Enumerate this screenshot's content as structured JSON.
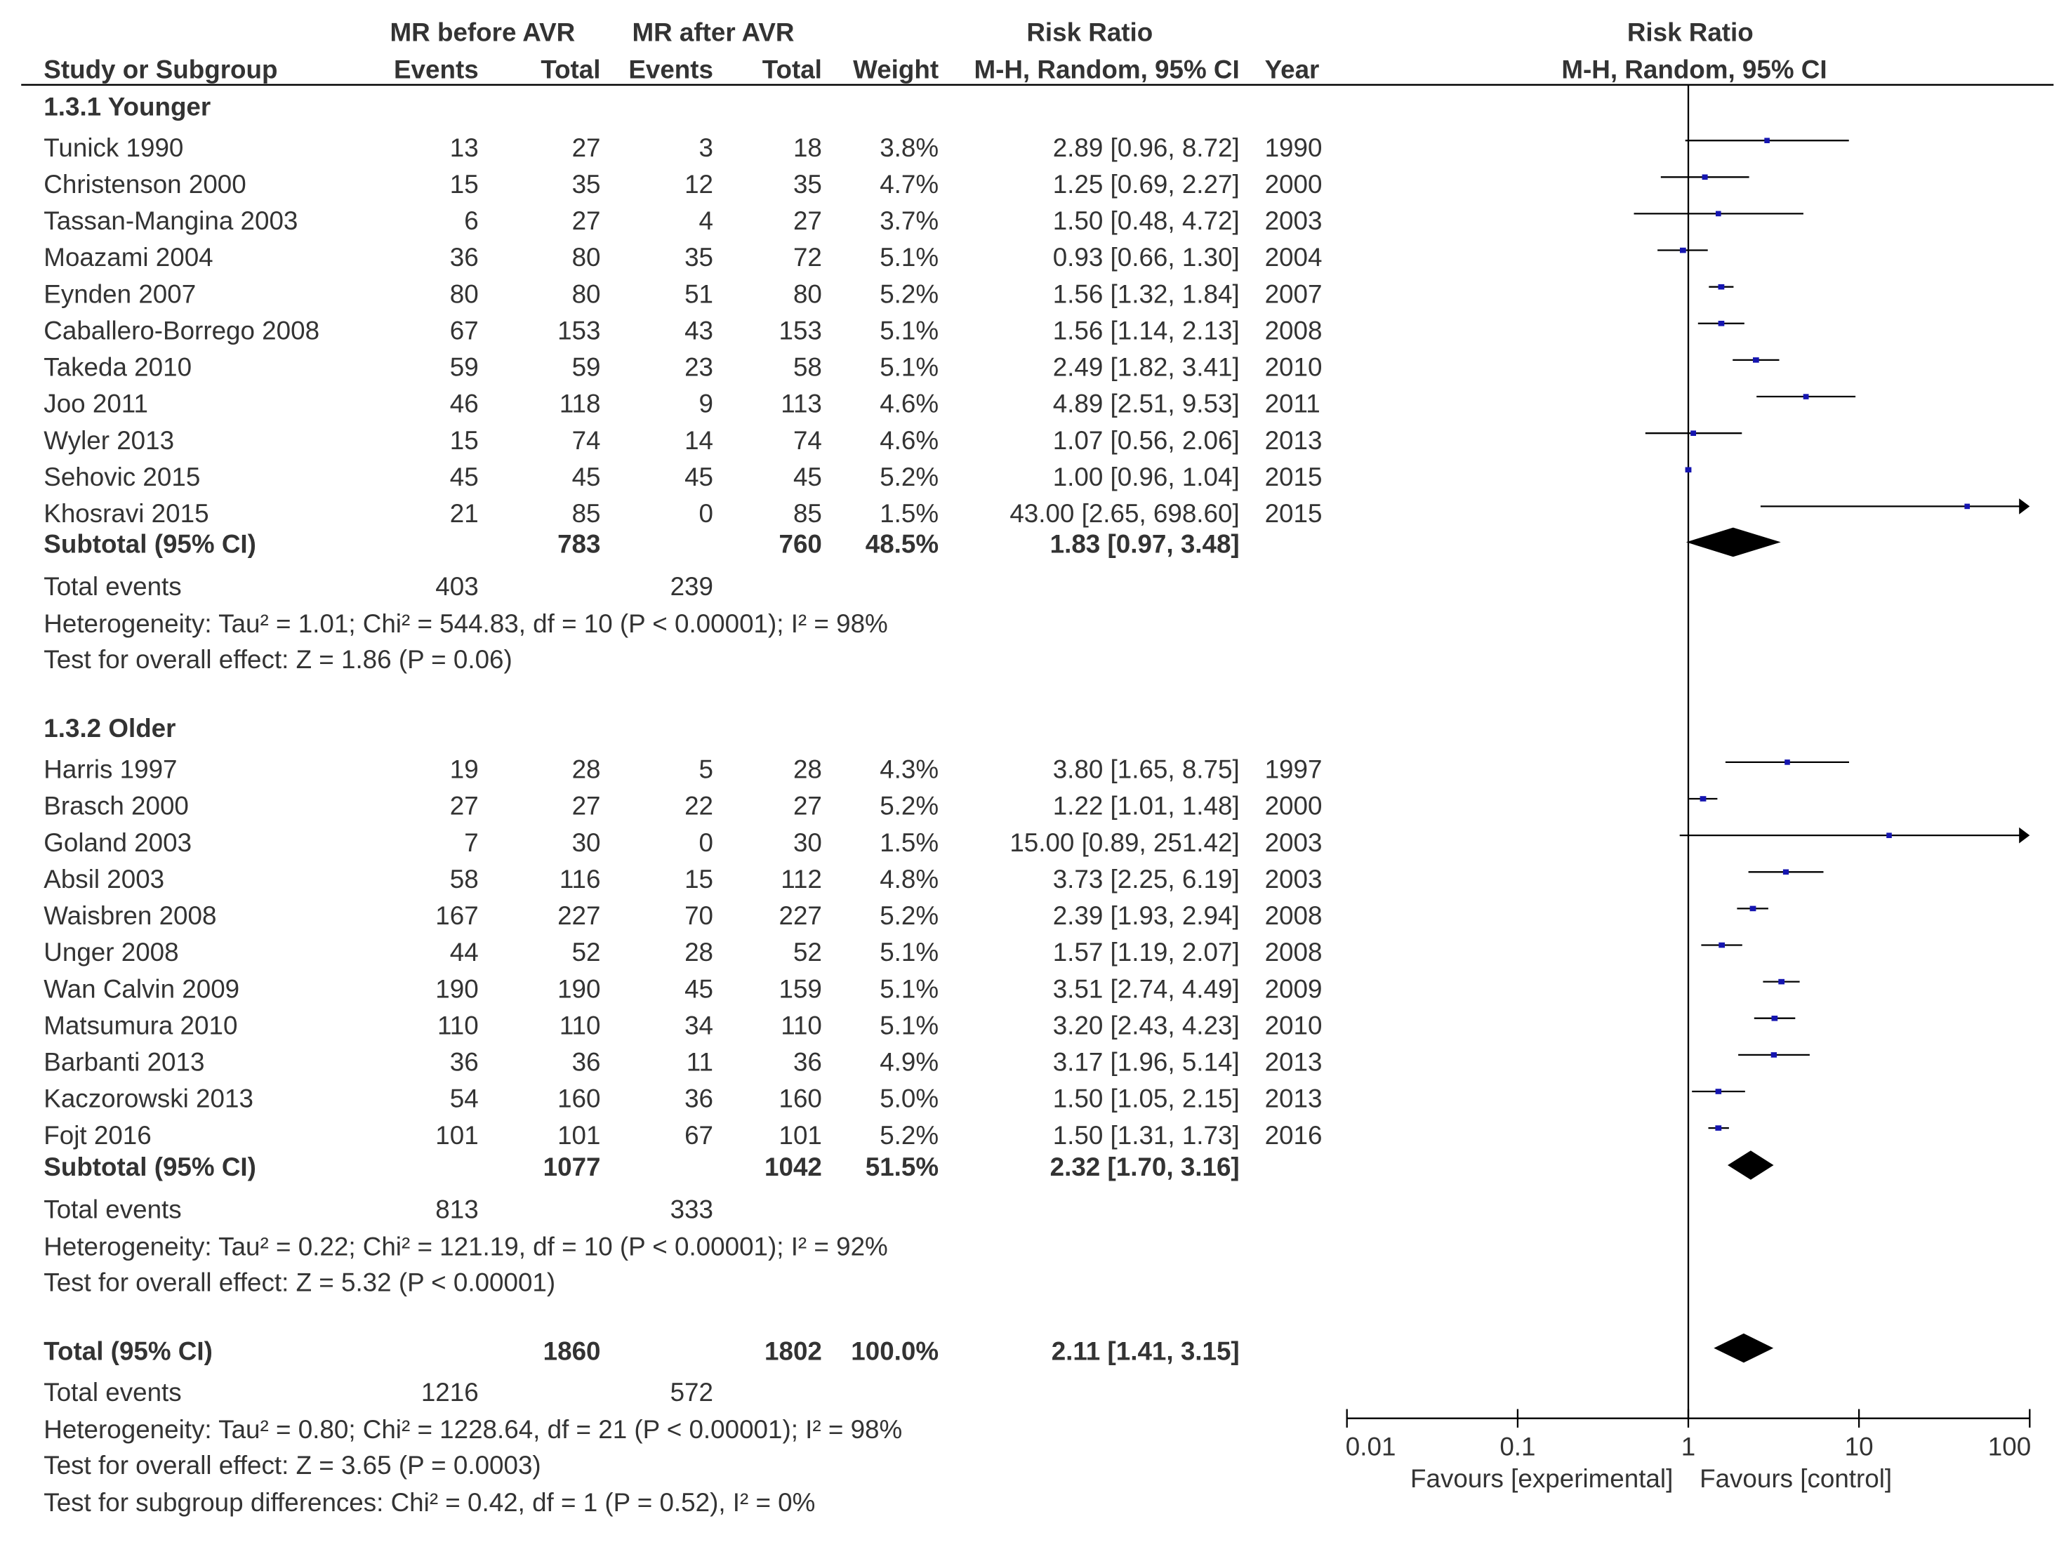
{
  "headers": {
    "group_exp": "MR before AVR",
    "group_ctl": "MR after AVR",
    "risk_ratio": "Risk Ratio",
    "plot_title": "Risk Ratio",
    "study": "Study or Subgroup",
    "events": "Events",
    "total": "Total",
    "weight": "Weight",
    "method": "M-H, Random, 95% CI",
    "year": "Year",
    "plot_method": "M-H, Random, 95% CI"
  },
  "footer": {
    "left_label": "Favours [experimental]",
    "right_label": "Favours [control]",
    "subgroup_test": "Test for subgroup differences: Chi² = 0.42, df = 1 (P = 0.52), I² = 0%"
  },
  "overall": {
    "label": "Total (95% CI)",
    "total_exp": "1860",
    "total_ctl": "1802",
    "weight": "100.0%",
    "ci_text": "2.11 [1.41, 3.15]",
    "total_events_label": "Total events",
    "events_exp": "1216",
    "events_ctl": "572",
    "heterogeneity": "Heterogeneity: Tau² = 0.80; Chi² = 1228.64, df = 21 (P < 0.00001); I² = 98%",
    "overall_effect": "Test for overall effect: Z = 3.65 (P = 0.0003)"
  },
  "chart_data": {
    "type": "forest",
    "title": "Risk Ratio",
    "method": "M-H, Random, 95% CI",
    "x_scale": "log",
    "xlim": [
      0.01,
      100
    ],
    "x_ticks": [
      "0.01",
      "0.1",
      "1",
      "10",
      "100"
    ],
    "x_tick_values": [
      0.01,
      0.1,
      1,
      10,
      100
    ],
    "reference_line": 1,
    "subgroups": [
      {
        "label": "1.3.1 Younger",
        "studies": [
          {
            "name": "Tunick 1990",
            "events_exp": "13",
            "total_exp": "27",
            "events_ctl": "3",
            "total_ctl": "18",
            "weight": "3.8%",
            "ci_text": "2.89 [0.96, 8.72]",
            "year": "1990",
            "rr": 2.89,
            "lo": 0.96,
            "hi": 8.72
          },
          {
            "name": "Christenson 2000",
            "events_exp": "15",
            "total_exp": "35",
            "events_ctl": "12",
            "total_ctl": "35",
            "weight": "4.7%",
            "ci_text": "1.25 [0.69, 2.27]",
            "year": "2000",
            "rr": 1.25,
            "lo": 0.69,
            "hi": 2.27
          },
          {
            "name": "Tassan-Mangina 2003",
            "events_exp": "6",
            "total_exp": "27",
            "events_ctl": "4",
            "total_ctl": "27",
            "weight": "3.7%",
            "ci_text": "1.50 [0.48, 4.72]",
            "year": "2003",
            "rr": 1.5,
            "lo": 0.48,
            "hi": 4.72
          },
          {
            "name": "Moazami 2004",
            "events_exp": "36",
            "total_exp": "80",
            "events_ctl": "35",
            "total_ctl": "72",
            "weight": "5.1%",
            "ci_text": "0.93 [0.66, 1.30]",
            "year": "2004",
            "rr": 0.93,
            "lo": 0.66,
            "hi": 1.3
          },
          {
            "name": "Eynden 2007",
            "events_exp": "80",
            "total_exp": "80",
            "events_ctl": "51",
            "total_ctl": "80",
            "weight": "5.2%",
            "ci_text": "1.56 [1.32, 1.84]",
            "year": "2007",
            "rr": 1.56,
            "lo": 1.32,
            "hi": 1.84
          },
          {
            "name": "Caballero-Borrego 2008",
            "events_exp": "67",
            "total_exp": "153",
            "events_ctl": "43",
            "total_ctl": "153",
            "weight": "5.1%",
            "ci_text": "1.56 [1.14, 2.13]",
            "year": "2008",
            "rr": 1.56,
            "lo": 1.14,
            "hi": 2.13
          },
          {
            "name": "Takeda 2010",
            "events_exp": "59",
            "total_exp": "59",
            "events_ctl": "23",
            "total_ctl": "58",
            "weight": "5.1%",
            "ci_text": "2.49 [1.82, 3.41]",
            "year": "2010",
            "rr": 2.49,
            "lo": 1.82,
            "hi": 3.41
          },
          {
            "name": "Joo 2011",
            "events_exp": "46",
            "total_exp": "118",
            "events_ctl": "9",
            "total_ctl": "113",
            "weight": "4.6%",
            "ci_text": "4.89 [2.51, 9.53]",
            "year": "2011",
            "rr": 4.89,
            "lo": 2.51,
            "hi": 9.53
          },
          {
            "name": "Wyler 2013",
            "events_exp": "15",
            "total_exp": "74",
            "events_ctl": "14",
            "total_ctl": "74",
            "weight": "4.6%",
            "ci_text": "1.07 [0.56, 2.06]",
            "year": "2013",
            "rr": 1.07,
            "lo": 0.56,
            "hi": 2.06
          },
          {
            "name": "Sehovic 2015",
            "events_exp": "45",
            "total_exp": "45",
            "events_ctl": "45",
            "total_ctl": "45",
            "weight": "5.2%",
            "ci_text": "1.00 [0.96, 1.04]",
            "year": "2015",
            "rr": 1.0,
            "lo": 0.96,
            "hi": 1.04
          },
          {
            "name": "Khosravi 2015",
            "events_exp": "21",
            "total_exp": "85",
            "events_ctl": "0",
            "total_ctl": "85",
            "weight": "1.5%",
            "ci_text": "43.00 [2.65, 698.60]",
            "year": "2015",
            "rr": 43.0,
            "lo": 2.65,
            "hi": 698.6
          }
        ],
        "subtotal": {
          "label": "Subtotal (95% CI)",
          "total_exp": "783",
          "total_ctl": "760",
          "weight": "48.5%",
          "ci_text": "1.83 [0.97, 3.48]",
          "rr": 1.83,
          "lo": 0.97,
          "hi": 3.48
        },
        "total_events_label": "Total events",
        "events_exp": "403",
        "events_ctl": "239",
        "heterogeneity": "Heterogeneity: Tau² = 1.01; Chi² = 544.83, df = 10 (P < 0.00001); I² = 98%",
        "overall_effect": "Test for overall effect: Z = 1.86 (P = 0.06)"
      },
      {
        "label": "1.3.2 Older",
        "studies": [
          {
            "name": "Harris 1997",
            "events_exp": "19",
            "total_exp": "28",
            "events_ctl": "5",
            "total_ctl": "28",
            "weight": "4.3%",
            "ci_text": "3.80 [1.65, 8.75]",
            "year": "1997",
            "rr": 3.8,
            "lo": 1.65,
            "hi": 8.75
          },
          {
            "name": "Brasch 2000",
            "events_exp": "27",
            "total_exp": "27",
            "events_ctl": "22",
            "total_ctl": "27",
            "weight": "5.2%",
            "ci_text": "1.22 [1.01, 1.48]",
            "year": "2000",
            "rr": 1.22,
            "lo": 1.01,
            "hi": 1.48
          },
          {
            "name": "Goland 2003",
            "events_exp": "7",
            "total_exp": "30",
            "events_ctl": "0",
            "total_ctl": "30",
            "weight": "1.5%",
            "ci_text": "15.00 [0.89, 251.42]",
            "year": "2003",
            "rr": 15.0,
            "lo": 0.89,
            "hi": 251.42
          },
          {
            "name": "Absil 2003",
            "events_exp": "58",
            "total_exp": "116",
            "events_ctl": "15",
            "total_ctl": "112",
            "weight": "4.8%",
            "ci_text": "3.73 [2.25, 6.19]",
            "year": "2003",
            "rr": 3.73,
            "lo": 2.25,
            "hi": 6.19
          },
          {
            "name": "Waisbren 2008",
            "events_exp": "167",
            "total_exp": "227",
            "events_ctl": "70",
            "total_ctl": "227",
            "weight": "5.2%",
            "ci_text": "2.39 [1.93, 2.94]",
            "year": "2008",
            "rr": 2.39,
            "lo": 1.93,
            "hi": 2.94
          },
          {
            "name": "Unger 2008",
            "events_exp": "44",
            "total_exp": "52",
            "events_ctl": "28",
            "total_ctl": "52",
            "weight": "5.1%",
            "ci_text": "1.57 [1.19, 2.07]",
            "year": "2008",
            "rr": 1.57,
            "lo": 1.19,
            "hi": 2.07
          },
          {
            "name": "Wan Calvin 2009",
            "events_exp": "190",
            "total_exp": "190",
            "events_ctl": "45",
            "total_ctl": "159",
            "weight": "5.1%",
            "ci_text": "3.51 [2.74, 4.49]",
            "year": "2009",
            "rr": 3.51,
            "lo": 2.74,
            "hi": 4.49
          },
          {
            "name": "Matsumura 2010",
            "events_exp": "110",
            "total_exp": "110",
            "events_ctl": "34",
            "total_ctl": "110",
            "weight": "5.1%",
            "ci_text": "3.20 [2.43, 4.23]",
            "year": "2010",
            "rr": 3.2,
            "lo": 2.43,
            "hi": 4.23
          },
          {
            "name": "Barbanti 2013",
            "events_exp": "36",
            "total_exp": "36",
            "events_ctl": "11",
            "total_ctl": "36",
            "weight": "4.9%",
            "ci_text": "3.17 [1.96, 5.14]",
            "year": "2013",
            "rr": 3.17,
            "lo": 1.96,
            "hi": 5.14
          },
          {
            "name": "Kaczorowski 2013",
            "events_exp": "54",
            "total_exp": "160",
            "events_ctl": "36",
            "total_ctl": "160",
            "weight": "5.0%",
            "ci_text": "1.50 [1.05, 2.15]",
            "year": "2013",
            "rr": 1.5,
            "lo": 1.05,
            "hi": 2.15
          },
          {
            "name": "Fojt 2016",
            "events_exp": "101",
            "total_exp": "101",
            "events_ctl": "67",
            "total_ctl": "101",
            "weight": "5.2%",
            "ci_text": "1.50 [1.31, 1.73]",
            "year": "2016",
            "rr": 1.5,
            "lo": 1.31,
            "hi": 1.73
          }
        ],
        "subtotal": {
          "label": "Subtotal (95% CI)",
          "total_exp": "1077",
          "total_ctl": "1042",
          "weight": "51.5%",
          "ci_text": "2.32 [1.70, 3.16]",
          "rr": 2.32,
          "lo": 1.7,
          "hi": 3.16
        },
        "total_events_label": "Total events",
        "events_exp": "813",
        "events_ctl": "333",
        "heterogeneity": "Heterogeneity: Tau² = 0.22; Chi² = 121.19, df = 10 (P < 0.00001); I² = 92%",
        "overall_effect": "Test for overall effect: Z = 5.32 (P < 0.00001)"
      }
    ],
    "overall": {
      "rr": 2.11,
      "lo": 1.41,
      "hi": 3.15
    },
    "colors": {
      "marker": "#1515b0",
      "line": "#000000",
      "diamond": "#000000",
      "text": "#333333"
    }
  }
}
